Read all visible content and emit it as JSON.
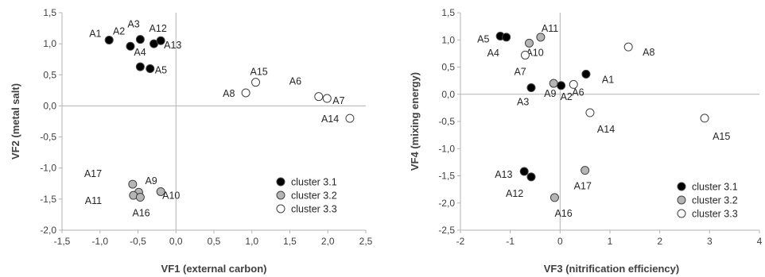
{
  "colors": {
    "cluster_3_1": "#000000",
    "cluster_3_2": "#b5b5b5",
    "cluster_3_3": "#ffffff",
    "axis": "#b3b3b3",
    "stroke": "#404040"
  },
  "chart_data": [
    {
      "type": "scatter",
      "xlabel": "VF1 (external carbon)",
      "ylabel": "VF2 (metal salt)",
      "xlim": [
        -1.5,
        2.5
      ],
      "ylim": [
        -2.0,
        1.5
      ],
      "xticks": [
        "-1,5",
        "-1,0",
        "-0,5",
        "0,0",
        "0,5",
        "1,0",
        "1,5",
        "2,0",
        "2,5"
      ],
      "yticks": [
        "1,5",
        "1,0",
        "0,5",
        "0,0",
        "-0,5",
        "-1,0",
        "-1,5",
        "-2,0"
      ],
      "grid": false,
      "legend_position": "bottom-right",
      "series": [
        {
          "name": "cluster 3.1",
          "points": [
            {
              "label": "A1",
              "x": -0.88,
              "y": 1.06
            },
            {
              "label": "A2",
              "x": -0.6,
              "y": 0.96
            },
            {
              "label": "A3",
              "x": -0.47,
              "y": 1.07
            },
            {
              "label": "A12",
              "x": -0.29,
              "y": 1.0
            },
            {
              "label": "A13",
              "x": -0.2,
              "y": 1.05
            },
            {
              "label": "A4",
              "x": -0.47,
              "y": 0.63
            },
            {
              "label": "A5",
              "x": -0.34,
              "y": 0.6
            }
          ]
        },
        {
          "name": "cluster 3.2",
          "points": [
            {
              "label": "A17",
              "x": -0.57,
              "y": -1.26
            },
            {
              "label": "A9",
              "x": -0.49,
              "y": -1.39
            },
            {
              "label": "A10",
              "x": -0.2,
              "y": -1.38
            },
            {
              "label": "A11",
              "x": -0.56,
              "y": -1.44
            },
            {
              "label": "A16",
              "x": -0.47,
              "y": -1.47
            }
          ]
        },
        {
          "name": "cluster 3.3",
          "points": [
            {
              "label": "A15",
              "x": 1.05,
              "y": 0.38
            },
            {
              "label": "A8",
              "x": 0.92,
              "y": 0.21
            },
            {
              "label": "A6",
              "x": 1.88,
              "y": 0.15
            },
            {
              "label": "A7",
              "x": 1.99,
              "y": 0.12
            },
            {
              "label": "A14",
              "x": 2.29,
              "y": -0.2
            }
          ]
        }
      ]
    },
    {
      "type": "scatter",
      "xlabel": "VF3 (nitrification efficiency)",
      "ylabel": "VF4 (mixing energy)",
      "xlim": [
        -2,
        4
      ],
      "ylim": [
        -2.5,
        1.5
      ],
      "xticks": [
        "-2",
        "-1",
        "0",
        "1",
        "2",
        "3",
        "4"
      ],
      "yticks": [
        "1,5",
        "1,0",
        "0,5",
        "0,0",
        "-0,5",
        "-1,0",
        "-1,5",
        "-2,0",
        "-2,5"
      ],
      "grid": false,
      "legend_position": "bottom-right",
      "series": [
        {
          "name": "cluster 3.1",
          "points": [
            {
              "label": "A5",
              "x": -1.2,
              "y": 1.07
            },
            {
              "label": "A4",
              "x": -1.08,
              "y": 1.05
            },
            {
              "label": "A1",
              "x": 0.52,
              "y": 0.37
            },
            {
              "label": "A3",
              "x": -0.58,
              "y": 0.12
            },
            {
              "label": "A2",
              "x": 0.02,
              "y": 0.16
            },
            {
              "label": "A13",
              "x": -0.72,
              "y": -1.42
            },
            {
              "label": "A12",
              "x": -0.58,
              "y": -1.52
            }
          ]
        },
        {
          "name": "cluster 3.2",
          "points": [
            {
              "label": "A11",
              "x": -0.39,
              "y": 1.05
            },
            {
              "label": "A10",
              "x": -0.62,
              "y": 0.94
            },
            {
              "label": "A9",
              "x": -0.13,
              "y": 0.2
            },
            {
              "label": "A17",
              "x": 0.5,
              "y": -1.4
            },
            {
              "label": "A16",
              "x": -0.11,
              "y": -1.9
            }
          ]
        },
        {
          "name": "cluster 3.3",
          "points": [
            {
              "label": "A7",
              "x": -0.7,
              "y": 0.72
            },
            {
              "label": "A6",
              "x": 0.27,
              "y": 0.18
            },
            {
              "label": "A8",
              "x": 1.37,
              "y": 0.87
            },
            {
              "label": "A14",
              "x": 0.6,
              "y": -0.34
            },
            {
              "label": "A15",
              "x": 2.9,
              "y": -0.44
            }
          ]
        }
      ]
    }
  ]
}
